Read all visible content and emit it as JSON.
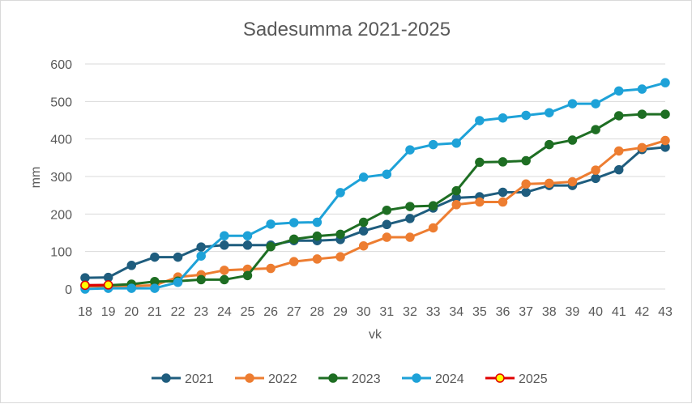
{
  "chart_data": {
    "type": "line",
    "title": "Sadesumma 2021-2025",
    "xlabel": "vk",
    "ylabel": "mm",
    "ylim": [
      0,
      600
    ],
    "yticks": [
      0,
      100,
      200,
      300,
      400,
      500,
      600
    ],
    "grid": true,
    "legend_position": "bottom",
    "x": [
      18,
      19,
      20,
      21,
      22,
      23,
      24,
      25,
      26,
      27,
      28,
      29,
      30,
      31,
      32,
      33,
      34,
      35,
      36,
      37,
      38,
      39,
      40,
      41,
      42,
      43
    ],
    "series": [
      {
        "name": "2021",
        "color": "#1f5d7e",
        "marker_fill": "#1f5d7e",
        "values": [
          30,
          31,
          63,
          85,
          85,
          112,
          117,
          117,
          117,
          129,
          129,
          132,
          155,
          172,
          188,
          216,
          243,
          246,
          258,
          258,
          276,
          276,
          295,
          318,
          372,
          378
        ]
      },
      {
        "name": "2022",
        "color": "#ed7d31",
        "marker_fill": "#ed7d31",
        "values": [
          7,
          8,
          8,
          10,
          32,
          38,
          50,
          53,
          55,
          73,
          80,
          86,
          115,
          138,
          138,
          163,
          225,
          232,
          232,
          280,
          282,
          286,
          317,
          368,
          377,
          396
        ]
      },
      {
        "name": "2023",
        "color": "#1e6e23",
        "marker_fill": "#1e6e23",
        "values": [
          10,
          10,
          13,
          20,
          21,
          25,
          25,
          36,
          113,
          133,
          141,
          146,
          178,
          210,
          220,
          222,
          262,
          338,
          339,
          342,
          385,
          397,
          425,
          462,
          466,
          466
        ]
      },
      {
        "name": "2024",
        "color": "#1ea2d8",
        "marker_fill": "#1ea2d8",
        "values": [
          0,
          2,
          2,
          2,
          18,
          88,
          142,
          142,
          173,
          177,
          178,
          257,
          298,
          306,
          371,
          385,
          389,
          449,
          456,
          463,
          470,
          494,
          494,
          528,
          533,
          550
        ]
      },
      {
        "name": "2025",
        "color": "#e00000",
        "marker_fill": "#ffff00",
        "values": [
          10,
          11,
          null,
          null,
          null,
          null,
          null,
          null,
          null,
          null,
          null,
          null,
          null,
          null,
          null,
          null,
          null,
          null,
          null,
          null,
          null,
          null,
          null,
          null,
          null,
          null
        ]
      }
    ]
  }
}
